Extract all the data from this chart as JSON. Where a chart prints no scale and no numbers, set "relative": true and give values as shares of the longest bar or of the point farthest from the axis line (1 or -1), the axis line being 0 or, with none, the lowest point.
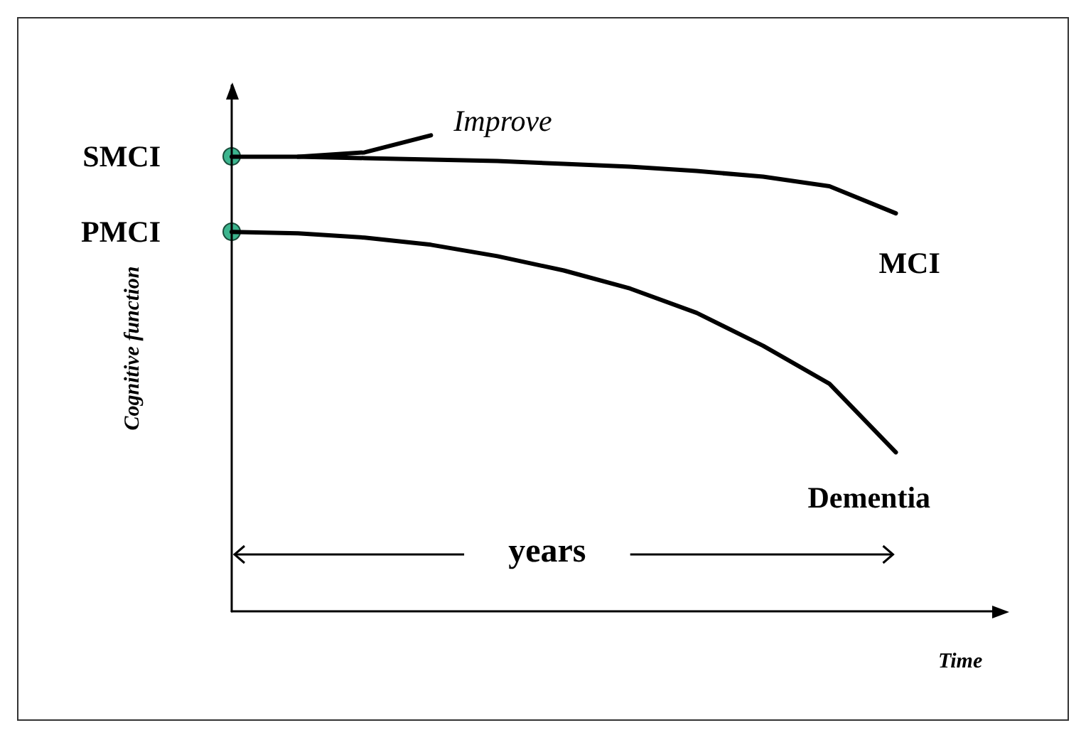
{
  "chart_data": {
    "type": "line",
    "relative": true,
    "xlabel": "Time",
    "ylabel": "Cognitive function",
    "categories": [
      null,
      null,
      null,
      null,
      null,
      null,
      null,
      null,
      null,
      null,
      null
    ],
    "series": [
      {
        "name": "MCI",
        "color": "#000000",
        "marker": "none",
        "line_style": "solid",
        "values": [
          0.955,
          0.955,
          0.952,
          0.949,
          0.946,
          0.94,
          0.934,
          0.925,
          0.913,
          0.893,
          0.836
        ]
      },
      {
        "name": "Dementia",
        "color": "#000000",
        "marker": "none",
        "line_style": "solid",
        "values": [
          0.797,
          0.794,
          0.785,
          0.77,
          0.746,
          0.716,
          0.678,
          0.627,
          0.558,
          0.478,
          0.334
        ]
      },
      {
        "name": "Improve",
        "color": "#000000",
        "marker": "none",
        "line_style": "solid",
        "values": [
          null,
          0.955,
          0.964,
          1.0,
          null,
          null,
          null,
          null,
          null,
          null,
          null
        ]
      }
    ],
    "annotations": [
      "SMCI",
      "PMCI",
      "years"
    ],
    "grid": false,
    "legend": false
  }
}
